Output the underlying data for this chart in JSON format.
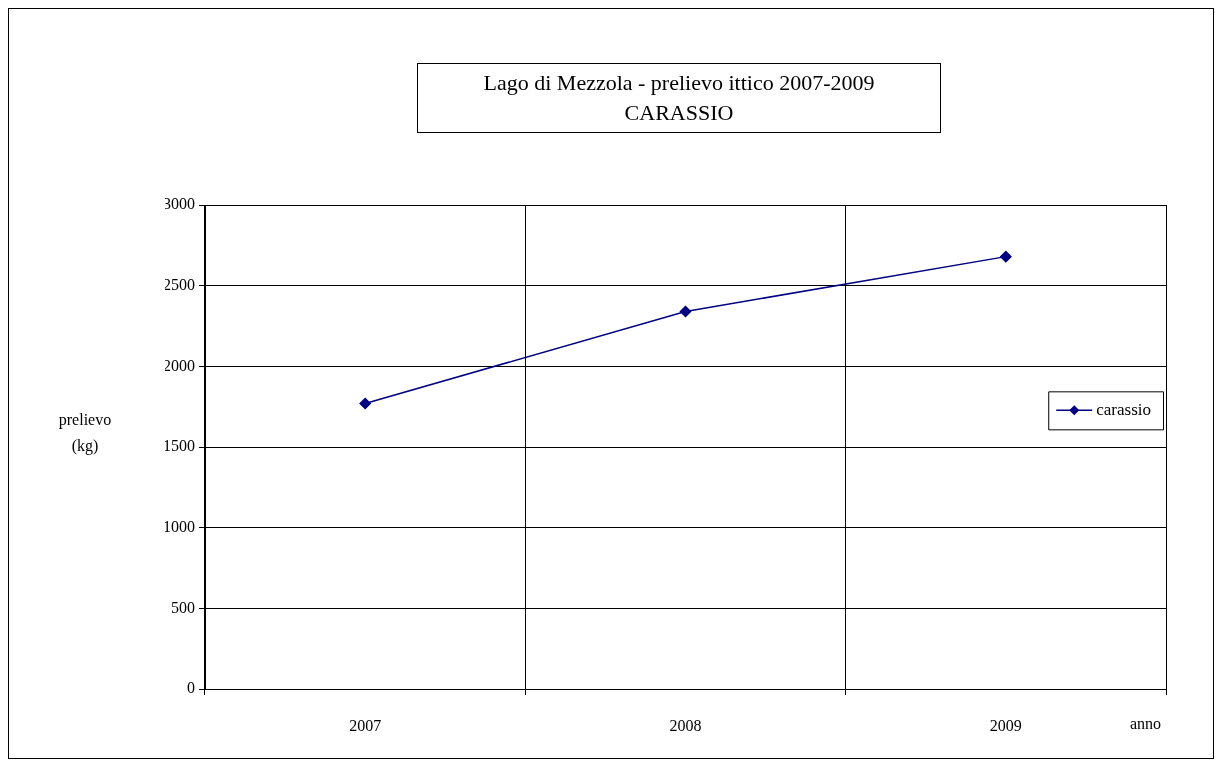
{
  "chart_data": {
    "type": "line",
    "title": "Lago di Mezzola - prelievo ittico 2007-2009",
    "subtitle": "CARASSIO",
    "xlabel": "anno",
    "ylabel": "prelievo (kg)",
    "categories": [
      "2007",
      "2008",
      "2009"
    ],
    "series": [
      {
        "name": "carassio",
        "color": "#000080",
        "values": [
          1770,
          2340,
          2680
        ]
      }
    ],
    "ylim": [
      0,
      3000
    ],
    "yticks": [
      0,
      500,
      1000,
      1500,
      2000,
      2500,
      3000
    ],
    "grid": true,
    "legend": "right",
    "marker": "diamond",
    "line_style": "solid"
  }
}
